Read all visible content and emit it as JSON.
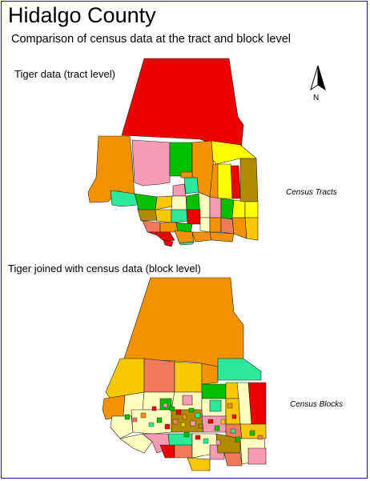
{
  "title": "Hidalgo County",
  "subtitle": "Comparison of census data at the tract and block level",
  "map_tract": {
    "label": "Tiger data (tract level)",
    "legend": "Census Tracts"
  },
  "map_block": {
    "label": "Tiger joined with census data (block level)",
    "legend": "Census Blocks"
  },
  "north_arrow": {
    "icon": "north-arrow-icon",
    "letter": "N"
  },
  "colors": {
    "border": "#1a1a8c",
    "red": "#ee0000",
    "orange": "#f39200",
    "pink": "#f59bb4",
    "green": "#00c000",
    "yellow": "#ffff00",
    "olive": "#b08a00",
    "mint": "#2ee89a",
    "salmon": "#f07a5a",
    "gold": "#f7c800",
    "cream": "#ffffc0"
  }
}
